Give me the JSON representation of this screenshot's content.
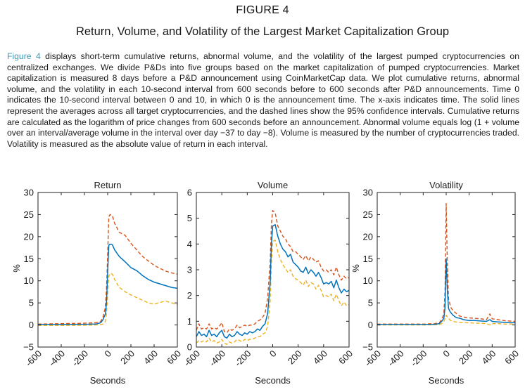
{
  "figure": {
    "label": "FIGURE 4",
    "title": "Return, Volume, and Volatility of the Largest Market Capitalization Group",
    "caption_ref": "Figure 4",
    "caption_text": " displays short-term cumulative returns, abnormal volume, and the volatility of the largest pumped cryptocurrencies on centralized exchanges. We divide P&Ds into five groups based on the market capitalization of pumped cryptocurrencies. Market capitalization is measured 8 days before a P&D announcement using CoinMarketCap data. We plot cumulative returns, abnormal volume, and the volatility in each 10-second interval from 600 seconds before to 600 seconds after P&D announcements. Time 0 indicates the 10-second interval between 0 and 10, in which 0 is the announcement time. The x-axis indicates time. The solid lines represent the averages across all target cryptocurrencies, and the dashed lines show the 95% confidence intervals. Cumulative returns are calculated as the logarithm of price changes from 600 seconds before an announcement. Abnormal volume equals log (1 + volume over an interval/average volume in the interval over day −37 to day −8). Volume is measured by the number of cryptocurrencies traded. Volatility is measured as the absolute value of return in each interval."
  },
  "colors": {
    "mean": "#0072bd",
    "upper": "#d95319",
    "lower": "#edb120",
    "link": "#3a9bb8"
  },
  "chart_data": [
    {
      "type": "line",
      "title": "Return",
      "xlabel": "Seconds",
      "ylabel": "%",
      "xlim": [
        -600,
        600
      ],
      "ylim": [
        -5,
        30
      ],
      "xticks": [
        -600,
        -400,
        -200,
        0,
        200,
        400,
        600
      ],
      "xtick_labels": [
        "-600",
        "-400",
        "-200",
        "0",
        "200",
        "400",
        "600"
      ],
      "yticks": [
        -5,
        0,
        5,
        10,
        15,
        20,
        25,
        30
      ],
      "ytick_labels": [
        "−5",
        "0",
        "5",
        "10",
        "15",
        "20",
        "25",
        "30"
      ],
      "x": [
        -600,
        -400,
        -200,
        -100,
        -60,
        -40,
        -20,
        -10,
        0,
        10,
        20,
        40,
        60,
        100,
        150,
        200,
        250,
        300,
        350,
        400,
        450,
        500,
        550,
        600
      ],
      "series": [
        {
          "name": "Mean",
          "style": "solid",
          "values": [
            0.1,
            0.1,
            0.15,
            0.2,
            0.5,
            1.2,
            2.5,
            5,
            12,
            18,
            18.3,
            18.2,
            17.0,
            15.5,
            14.3,
            13.0,
            12.3,
            11.2,
            10.3,
            9.7,
            9.3,
            8.9,
            8.5,
            8.3
          ]
        },
        {
          "name": "Upper 95% CI",
          "style": "dashed",
          "values": [
            0.2,
            0.3,
            0.4,
            0.5,
            0.8,
            1.8,
            4,
            8,
            16,
            24.5,
            25,
            24.8,
            23,
            21,
            20.3,
            18.5,
            17,
            15.5,
            14.5,
            13.5,
            12.8,
            12.2,
            11.8,
            11.5
          ]
        },
        {
          "name": "Lower 95% CI",
          "style": "dashed",
          "values": [
            -0.1,
            -0.1,
            -0.05,
            0,
            0.1,
            0.2,
            0.8,
            2.5,
            7,
            11,
            11.7,
            11.5,
            10.3,
            8.5,
            7.5,
            6.8,
            6.2,
            5.6,
            5.0,
            4.7,
            5.1,
            5.4,
            5.0,
            4.6
          ]
        }
      ]
    },
    {
      "type": "line",
      "title": "Volume",
      "xlabel": "Seconds",
      "ylabel": "",
      "xlim": [
        -600,
        600
      ],
      "ylim": [
        0,
        6
      ],
      "xticks": [
        -600,
        -400,
        -200,
        0,
        200,
        400,
        600
      ],
      "xtick_labels": [
        "-600",
        "-400",
        "-200",
        "0",
        "200",
        "400",
        "600"
      ],
      "yticks": [
        0,
        1,
        2,
        3,
        4,
        5,
        6
      ],
      "ytick_labels": [
        "0",
        "1",
        "2",
        "3",
        "4",
        "5",
        "6"
      ],
      "x": [
        -600,
        -580,
        -560,
        -540,
        -520,
        -500,
        -480,
        -460,
        -440,
        -420,
        -400,
        -380,
        -360,
        -340,
        -320,
        -300,
        -280,
        -260,
        -240,
        -220,
        -200,
        -180,
        -160,
        -140,
        -120,
        -100,
        -80,
        -60,
        -40,
        -20,
        -10,
        0,
        20,
        40,
        60,
        80,
        100,
        120,
        140,
        160,
        180,
        200,
        220,
        240,
        260,
        280,
        300,
        320,
        340,
        360,
        380,
        400,
        420,
        440,
        460,
        480,
        500,
        520,
        540,
        560,
        580,
        600
      ],
      "series": [
        {
          "name": "Mean",
          "style": "solid",
          "values": [
            0.4,
            0.6,
            0.45,
            0.5,
            0.4,
            0.65,
            0.45,
            0.5,
            0.4,
            0.55,
            0.65,
            0.4,
            0.35,
            0.5,
            0.4,
            0.45,
            0.6,
            0.5,
            0.45,
            0.55,
            0.5,
            0.6,
            0.55,
            0.6,
            0.7,
            0.65,
            0.8,
            0.9,
            1.3,
            2.5,
            4.0,
            4.7,
            4.75,
            4.3,
            4.0,
            3.8,
            3.7,
            3.5,
            3.6,
            3.3,
            3.2,
            3.1,
            2.95,
            2.9,
            3.1,
            2.85,
            3.0,
            2.9,
            2.75,
            2.9,
            2.7,
            2.45,
            2.5,
            2.45,
            2.55,
            2.3,
            2.6,
            2.3,
            2.1,
            2.25,
            2.15,
            2.2
          ]
        },
        {
          "name": "Upper 95% CI",
          "style": "dashed",
          "values": [
            0.65,
            0.9,
            0.7,
            0.75,
            0.7,
            0.9,
            0.7,
            0.75,
            0.7,
            0.8,
            0.95,
            0.6,
            0.55,
            0.7,
            0.65,
            0.7,
            0.85,
            0.75,
            0.8,
            0.85,
            0.8,
            0.85,
            0.85,
            0.9,
            1.0,
            1.05,
            1.15,
            1.3,
            1.9,
            3.3,
            4.8,
            5.3,
            5.2,
            4.7,
            4.5,
            4.3,
            4.2,
            4.0,
            3.9,
            3.7,
            3.7,
            3.6,
            3.5,
            3.4,
            3.55,
            3.35,
            3.5,
            3.4,
            3.3,
            3.35,
            3.1,
            2.95,
            3.0,
            2.9,
            3.0,
            2.8,
            3.1,
            2.8,
            2.6,
            2.75,
            2.65,
            2.7
          ]
        },
        {
          "name": "Lower 95% CI",
          "style": "dashed",
          "values": [
            0.15,
            0.25,
            0.2,
            0.25,
            0.2,
            0.35,
            0.2,
            0.25,
            0.15,
            0.2,
            0.3,
            0.15,
            0.1,
            0.2,
            0.15,
            0.2,
            0.3,
            0.25,
            0.2,
            0.3,
            0.25,
            0.3,
            0.3,
            0.35,
            0.4,
            0.4,
            0.5,
            0.55,
            0.8,
            1.8,
            3.3,
            4.1,
            4.15,
            3.7,
            3.4,
            3.2,
            3.05,
            2.9,
            3.0,
            2.75,
            2.65,
            2.6,
            2.5,
            2.4,
            2.6,
            2.35,
            2.5,
            2.45,
            2.25,
            2.4,
            2.2,
            1.95,
            2.0,
            1.95,
            2.05,
            1.8,
            2.05,
            1.8,
            1.6,
            1.75,
            1.6,
            1.65
          ]
        }
      ]
    },
    {
      "type": "line",
      "title": "Volatility",
      "xlabel": "Seconds",
      "ylabel": "%",
      "xlim": [
        -600,
        600
      ],
      "ylim": [
        -5,
        30
      ],
      "xticks": [
        -600,
        -400,
        -200,
        0,
        200,
        400,
        600
      ],
      "xtick_labels": [
        "-600",
        "-400",
        "-200",
        "0",
        "200",
        "400",
        "600"
      ],
      "yticks": [
        -5,
        0,
        5,
        10,
        15,
        20,
        25,
        30
      ],
      "ytick_labels": [
        "−5",
        "0",
        "5",
        "10",
        "15",
        "20",
        "25",
        "30"
      ],
      "x": [
        -600,
        -400,
        -200,
        -100,
        -60,
        -40,
        -20,
        -10,
        0,
        10,
        20,
        30,
        40,
        60,
        80,
        100,
        120,
        150,
        200,
        250,
        300,
        350,
        380,
        400,
        450,
        500,
        550,
        600
      ],
      "series": [
        {
          "name": "Mean",
          "style": "solid",
          "values": [
            0.1,
            0.1,
            0.1,
            0.15,
            0.3,
            0.8,
            1.5,
            4,
            15,
            8,
            3.8,
            3.2,
            2.8,
            2.2,
            1.8,
            1.6,
            1.5,
            1.2,
            1.0,
            1.0,
            0.9,
            0.8,
            1.2,
            0.8,
            0.7,
            0.6,
            0.5,
            0.5
          ]
        },
        {
          "name": "Upper 95% CI",
          "style": "dashed",
          "values": [
            0.2,
            0.2,
            0.2,
            0.3,
            0.5,
            1.2,
            2.5,
            8,
            27.5,
            14,
            6,
            5,
            4,
            3.2,
            2.8,
            2.3,
            2.0,
            1.8,
            1.6,
            1.5,
            1.4,
            1.2,
            2.5,
            1.4,
            1.2,
            1.0,
            0.9,
            0.8
          ]
        },
        {
          "name": "Lower 95% CI",
          "style": "dashed",
          "values": [
            0.0,
            0.0,
            0.0,
            0.05,
            0.1,
            0.3,
            0.8,
            1.5,
            2.2,
            1.8,
            1.5,
            1.2,
            1.0,
            0.8,
            0.7,
            0.6,
            0.6,
            0.5,
            0.5,
            0.4,
            0.4,
            0.3,
            0.0,
            0.3,
            0.3,
            0.2,
            0.2,
            0.2
          ]
        }
      ]
    }
  ]
}
